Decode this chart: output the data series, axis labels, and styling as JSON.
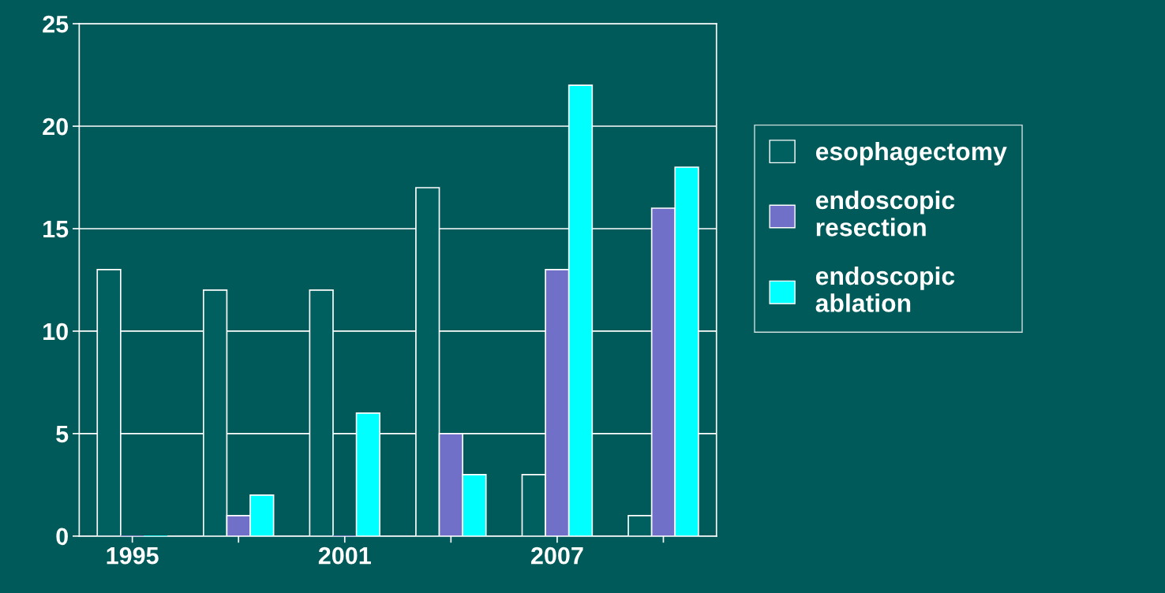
{
  "chart_data": {
    "type": "bar",
    "categories": [
      "1995",
      null,
      "2001",
      null,
      "2007",
      null
    ],
    "series": [
      {
        "name": "esophagectomy",
        "color": "#006060",
        "values": [
          13,
          12,
          12,
          17,
          3,
          1
        ]
      },
      {
        "name": "endoscopic\nresection",
        "color": "#7070c8",
        "values": [
          0,
          1,
          0,
          5,
          13,
          16
        ]
      },
      {
        "name": "endoscopic\nablation",
        "color": "#00ffff",
        "values": [
          0,
          2,
          6,
          3,
          22,
          18
        ]
      }
    ],
    "ylim": [
      0,
      25
    ],
    "yticks": [
      0,
      5,
      10,
      15,
      20,
      25
    ],
    "grid": "y",
    "legend": "right"
  }
}
